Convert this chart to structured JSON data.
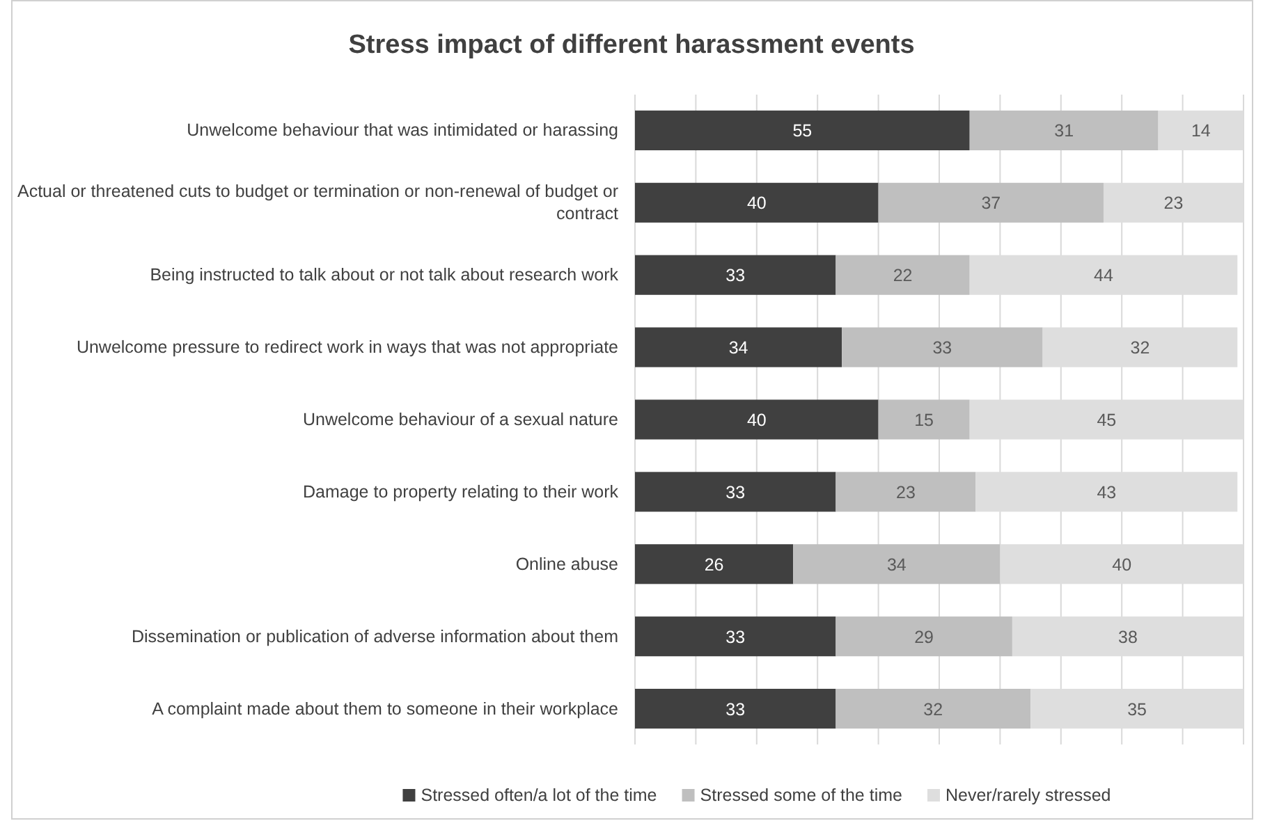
{
  "chart_data": {
    "type": "bar",
    "orientation": "horizontal",
    "stacked": true,
    "title": "Stress impact of different harassment events",
    "categories": [
      "Unwelcome behaviour that was intimidated or harassing",
      "Actual or threatened cuts to budget or termination or non-renewal of budget or contract",
      "Being instructed to talk about or not talk about research work",
      "Unwelcome pressure to redirect work in ways that was not appropriate",
      "Unwelcome behaviour of a sexual nature",
      "Damage to property relating to their work",
      "Online abuse",
      "Dissemination or publication of adverse information about them",
      "A complaint made about them to someone in their workplace"
    ],
    "series": [
      {
        "name": "Stressed often/a lot of the time",
        "color": "#404040",
        "values": [
          55,
          40,
          33,
          34,
          40,
          33,
          26,
          33,
          33
        ]
      },
      {
        "name": "Stressed some of the time",
        "color": "#bfbfbf",
        "values": [
          31,
          37,
          22,
          33,
          15,
          23,
          34,
          29,
          32
        ]
      },
      {
        "name": "Never/rarely stressed",
        "color": "#dedede",
        "values": [
          14,
          23,
          44,
          32,
          45,
          43,
          40,
          38,
          35
        ]
      }
    ],
    "xlim": [
      0,
      100
    ],
    "xticks": [
      {
        "value": 0,
        "label": null
      },
      {
        "value": 10,
        "label": null
      },
      {
        "value": 20,
        "label": null
      },
      {
        "value": 30,
        "label": null
      },
      {
        "value": 40,
        "label": null
      },
      {
        "value": 50,
        "label": null
      },
      {
        "value": 60,
        "label": null
      },
      {
        "value": 70,
        "label": null
      },
      {
        "value": 80,
        "label": null
      },
      {
        "value": 90,
        "label": null
      },
      {
        "value": 100,
        "label": null
      }
    ],
    "grid": "x",
    "legend": "bottom",
    "data_labels": true,
    "tick_labels": "y"
  }
}
